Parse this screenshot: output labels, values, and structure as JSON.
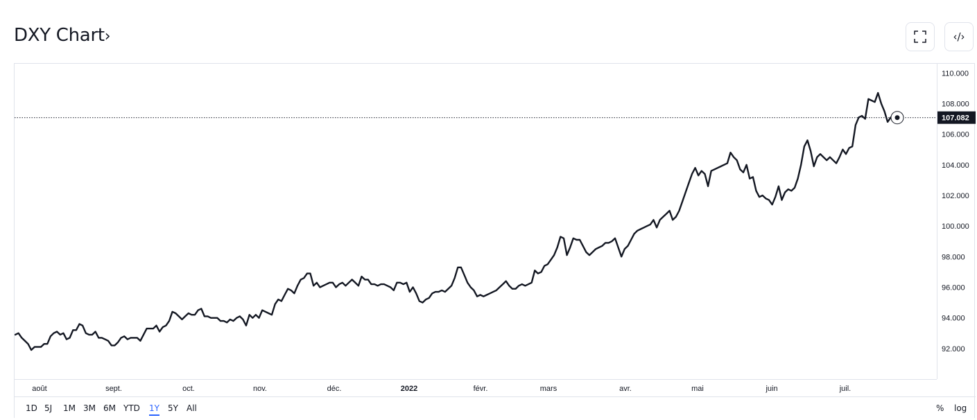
{
  "header": {
    "title": "DXY Chart",
    "title_chevron": "›",
    "fullscreen_icon": "fullscreen-icon",
    "embed_label": "‹/›"
  },
  "colors": {
    "line": "#131722",
    "grid_border": "#e0e3eb",
    "price_label_bg": "#131722",
    "active_range": "#2962ff"
  },
  "ranges": [
    "1D",
    "5J",
    "1M",
    "3M",
    "6M",
    "YTD",
    "1Y",
    "5Y",
    "All"
  ],
  "active_range": "1Y",
  "right_tools": {
    "percent": "%",
    "log": "log"
  },
  "chart_data": {
    "type": "line",
    "series": [
      {
        "values": [
          92.9,
          93.0,
          92.7,
          92.5,
          92.3,
          91.9,
          92.1,
          92.1,
          92.1,
          92.3,
          92.3,
          92.8,
          93.0,
          93.1,
          92.9,
          93.0,
          92.6,
          92.7,
          93.2,
          93.2,
          93.6,
          93.5,
          93.0,
          92.9,
          92.9,
          93.1,
          92.7,
          92.7,
          92.6,
          92.5,
          92.2,
          92.2,
          92.4,
          92.7,
          92.8,
          92.6,
          92.7,
          92.7,
          92.7,
          92.5,
          92.9,
          93.3,
          93.3,
          93.3,
          93.5,
          93.1,
          93.4,
          93.5,
          93.8,
          94.4,
          94.3,
          94.1,
          93.9,
          94.1,
          94.3,
          94.2,
          94.2,
          94.5,
          94.6,
          94.1,
          94.1,
          94.0,
          94.0,
          94.0,
          93.8,
          93.8,
          93.7,
          93.9,
          93.8,
          94.0,
          94.1,
          93.9,
          93.5,
          94.2,
          94.0,
          94.2,
          94.0,
          94.5,
          94.4,
          94.3,
          94.2,
          94.9,
          95.2,
          95.1,
          95.5,
          95.9,
          95.8,
          95.6,
          96.1,
          96.5,
          96.6,
          96.9,
          96.9,
          96.1,
          96.3,
          96.0,
          96.1,
          96.2,
          96.3,
          96.3,
          96.0,
          96.2,
          96.3,
          96.1,
          96.3,
          96.5,
          96.3,
          96.1,
          96.7,
          96.5,
          96.5,
          96.2,
          96.2,
          96.1,
          96.2,
          96.2,
          96.1,
          96.0,
          95.8,
          96.3,
          96.3,
          96.2,
          96.3,
          95.7,
          96.0,
          95.6,
          95.1,
          95.0,
          95.2,
          95.3,
          95.6,
          95.7,
          95.7,
          95.8,
          95.7,
          95.9,
          96.1,
          96.6,
          97.3,
          97.3,
          96.8,
          96.3,
          96.0,
          95.8,
          95.4,
          95.5,
          95.4,
          95.5,
          95.6,
          95.7,
          95.8,
          96.0,
          96.2,
          96.4,
          96.1,
          95.9,
          95.9,
          96.1,
          96.2,
          96.1,
          96.2,
          96.3,
          97.1,
          96.9,
          97.0,
          97.4,
          97.5,
          97.8,
          98.1,
          98.6,
          99.3,
          99.2,
          98.1,
          98.6,
          99.2,
          99.1,
          99.1,
          98.7,
          98.3,
          98.1,
          98.3,
          98.5,
          98.6,
          98.7,
          98.9,
          98.9,
          99.0,
          99.2,
          98.6,
          98.0,
          98.5,
          98.7,
          99.1,
          99.5,
          99.7,
          99.8,
          99.9,
          100.0,
          100.1,
          100.4,
          99.9,
          100.4,
          100.6,
          100.8,
          101.0,
          100.4,
          100.6,
          101.0,
          101.6,
          102.2,
          102.8,
          103.4,
          103.8,
          103.3,
          103.6,
          103.4,
          102.6,
          103.6,
          103.7,
          103.8,
          103.9,
          104.0,
          104.1,
          104.8,
          104.5,
          104.3,
          103.7,
          103.5,
          104.0,
          103.1,
          103.2,
          102.3,
          101.9,
          102.0,
          101.8,
          101.7,
          101.4,
          101.9,
          102.6,
          101.7,
          102.2,
          102.4,
          102.3,
          102.5,
          103.1,
          104.0,
          105.2,
          105.6,
          104.9,
          103.9,
          104.5,
          104.7,
          104.5,
          104.3,
          104.5,
          104.3,
          104.1,
          104.5,
          105.0,
          104.7,
          105.1,
          105.2,
          106.6,
          107.1,
          107.2,
          107.0,
          108.3,
          108.2,
          108.1,
          108.7,
          108.0,
          107.5,
          106.8,
          107.1,
          106.8,
          107.082
        ]
      }
    ],
    "x_ticks": [
      {
        "label": "août",
        "bold": false
      },
      {
        "label": "sept.",
        "bold": false
      },
      {
        "label": "oct.",
        "bold": false
      },
      {
        "label": "nov.",
        "bold": false
      },
      {
        "label": "déc.",
        "bold": false
      },
      {
        "label": "2022",
        "bold": true
      },
      {
        "label": "févr.",
        "bold": false
      },
      {
        "label": "mars",
        "bold": false
      },
      {
        "label": "avr.",
        "bold": false
      },
      {
        "label": "mai",
        "bold": false
      },
      {
        "label": "juin",
        "bold": false
      },
      {
        "label": "juil.",
        "bold": false
      }
    ],
    "y_ticks": [
      "92.000",
      "94.000",
      "96.000",
      "98.000",
      "100.000",
      "102.000",
      "104.000",
      "106.000",
      "108.000",
      "110.000"
    ],
    "ylim": [
      90,
      110.6
    ],
    "last_value": 107.082,
    "last_label": "107.082"
  }
}
